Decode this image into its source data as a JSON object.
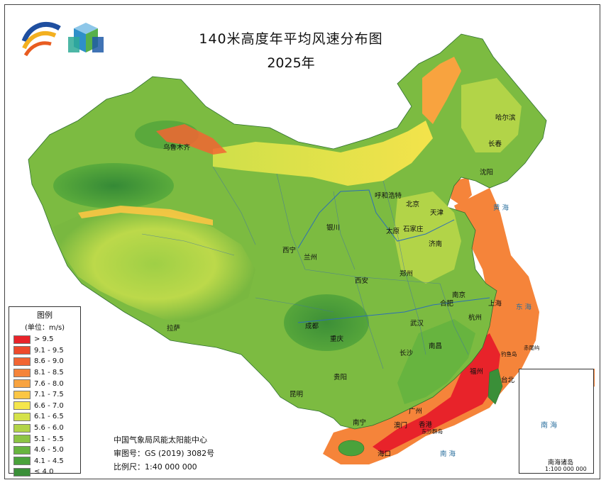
{
  "map": {
    "title": "140米高度年平均风速分布图",
    "year": "2025年"
  },
  "legend": {
    "title": "图例",
    "unit": "(单位：m/s)",
    "items": [
      {
        "label": "> 9.5",
        "color": "#e8232a"
      },
      {
        "label": "9.1 - 9.5",
        "color": "#ee4a2c"
      },
      {
        "label": "8.6 - 9.0",
        "color": "#f26533"
      },
      {
        "label": "8.1 - 8.5",
        "color": "#f5843a"
      },
      {
        "label": "7.6 - 8.0",
        "color": "#f8a33f"
      },
      {
        "label": "7.1 - 7.5",
        "color": "#fbc644"
      },
      {
        "label": "6.6 - 7.0",
        "color": "#f5e64c"
      },
      {
        "label": "6.1 - 6.5",
        "color": "#d5e24a"
      },
      {
        "label": "5.6 - 6.0",
        "color": "#b2d448"
      },
      {
        "label": "5.1 - 5.5",
        "color": "#8cc444"
      },
      {
        "label": "4.6 - 5.0",
        "color": "#67b43f"
      },
      {
        "label": "4.1 - 4.5",
        "color": "#4aa23b"
      },
      {
        "label": "≤ 4.0",
        "color": "#3a8f38"
      }
    ]
  },
  "credits": {
    "org": "中国气象局风能太阳能中心",
    "approval": "审图号：GS (2019) 3082号",
    "scale": "比例尺：1:40 000 000"
  },
  "cities": [
    {
      "name": "乌鲁木齐"
    },
    {
      "name": "哈尔滨"
    },
    {
      "name": "长春"
    },
    {
      "name": "沈阳"
    },
    {
      "name": "呼和浩特"
    },
    {
      "name": "北京"
    },
    {
      "name": "天津"
    },
    {
      "name": "银川"
    },
    {
      "name": "太原"
    },
    {
      "name": "石家庄"
    },
    {
      "name": "济南"
    },
    {
      "name": "西宁"
    },
    {
      "name": "兰州"
    },
    {
      "name": "郑州"
    },
    {
      "name": "西安"
    },
    {
      "name": "南京"
    },
    {
      "name": "合肥"
    },
    {
      "name": "上海"
    },
    {
      "name": "杭州"
    },
    {
      "name": "拉萨"
    },
    {
      "name": "成都"
    },
    {
      "name": "武汉"
    },
    {
      "name": "重庆"
    },
    {
      "name": "南昌"
    },
    {
      "name": "长沙"
    },
    {
      "name": "福州"
    },
    {
      "name": "台北"
    },
    {
      "name": "贵阳"
    },
    {
      "name": "昆明"
    },
    {
      "name": "南宁"
    },
    {
      "name": "广州"
    },
    {
      "name": "澳门"
    },
    {
      "name": "香港"
    },
    {
      "name": "海口"
    }
  ],
  "seas": [
    {
      "name": "黄海"
    },
    {
      "name": "东海"
    },
    {
      "name": "南海"
    }
  ],
  "islands": [
    {
      "name": "钓鱼岛"
    },
    {
      "name": "赤尾屿"
    },
    {
      "name": "东沙群岛"
    }
  ],
  "inset": {
    "sea_label": "南 海",
    "caption": "南海诸岛",
    "scale": "1:100 000 000"
  }
}
